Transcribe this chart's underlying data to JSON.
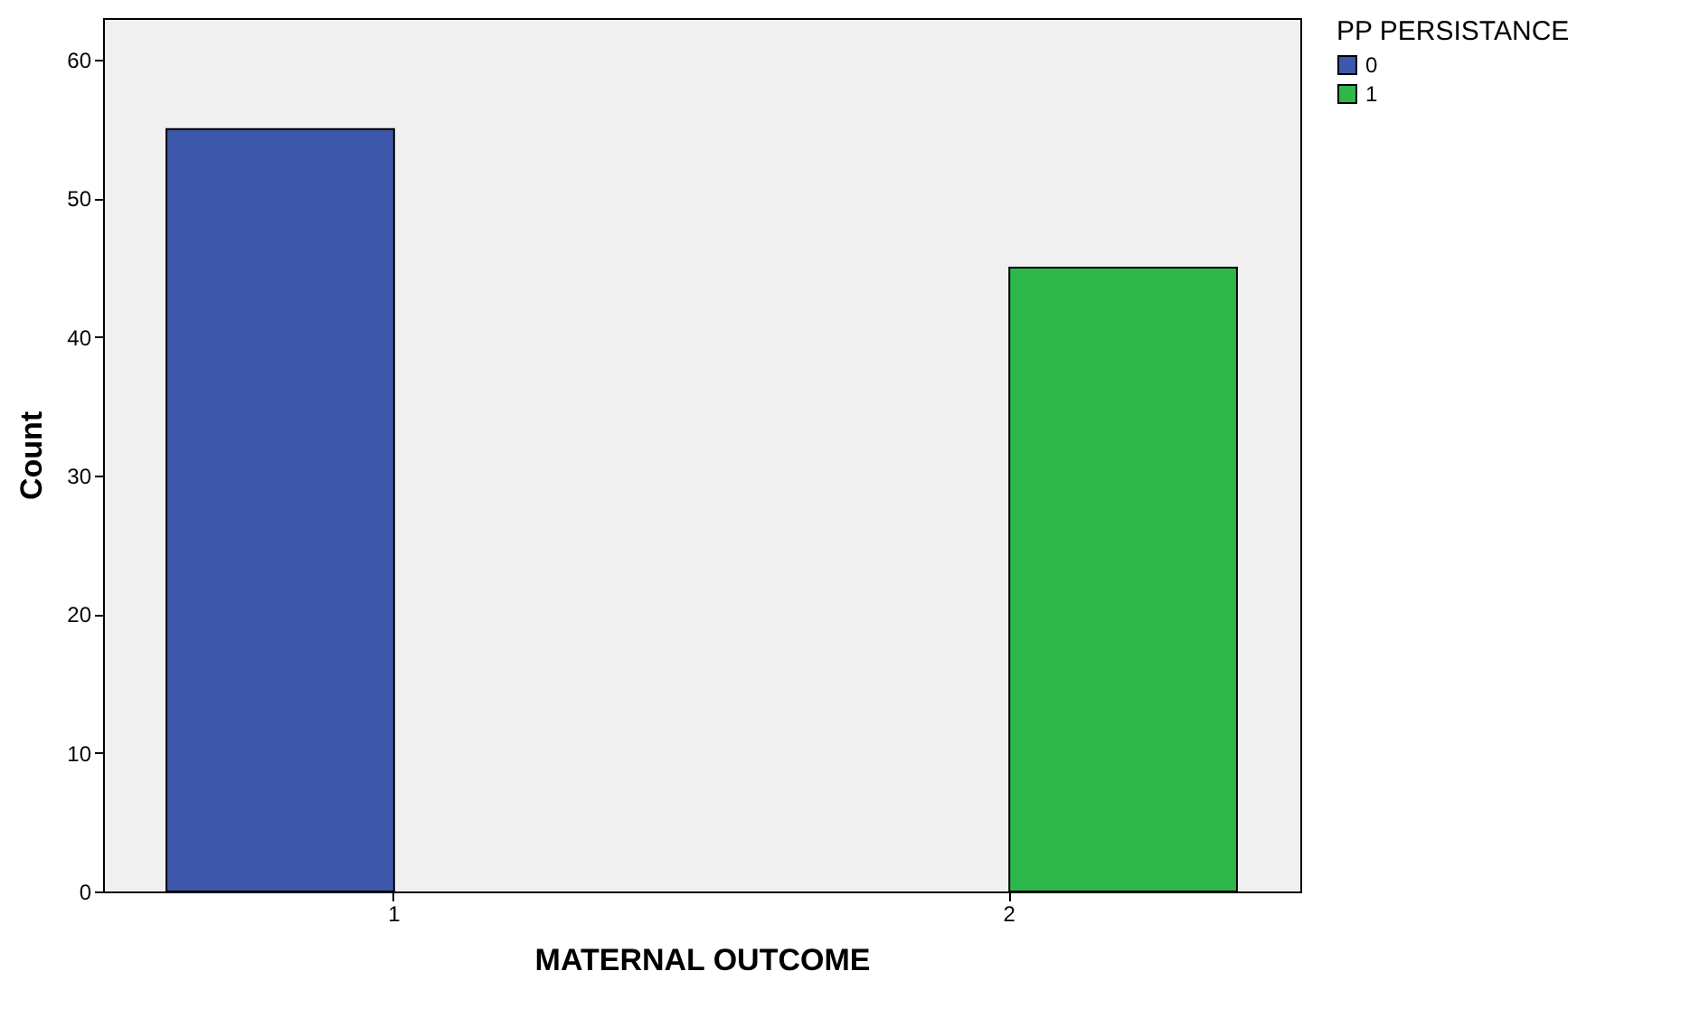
{
  "chart_data": {
    "type": "bar",
    "xlabel": "MATERNAL OUTCOME",
    "ylabel": "Count",
    "legend_title": "PP PERSISTANCE",
    "legend": "top right",
    "categories": [
      "1",
      "2"
    ],
    "series": [
      {
        "name": "0",
        "color": "#3d58ab",
        "values": [
          55,
          null
        ]
      },
      {
        "name": "1",
        "color": "#2eb84b",
        "values": [
          null,
          45
        ]
      }
    ],
    "ylim": [
      0,
      63
    ],
    "yticks": [
      0,
      10,
      20,
      30,
      40,
      50,
      60
    ]
  }
}
